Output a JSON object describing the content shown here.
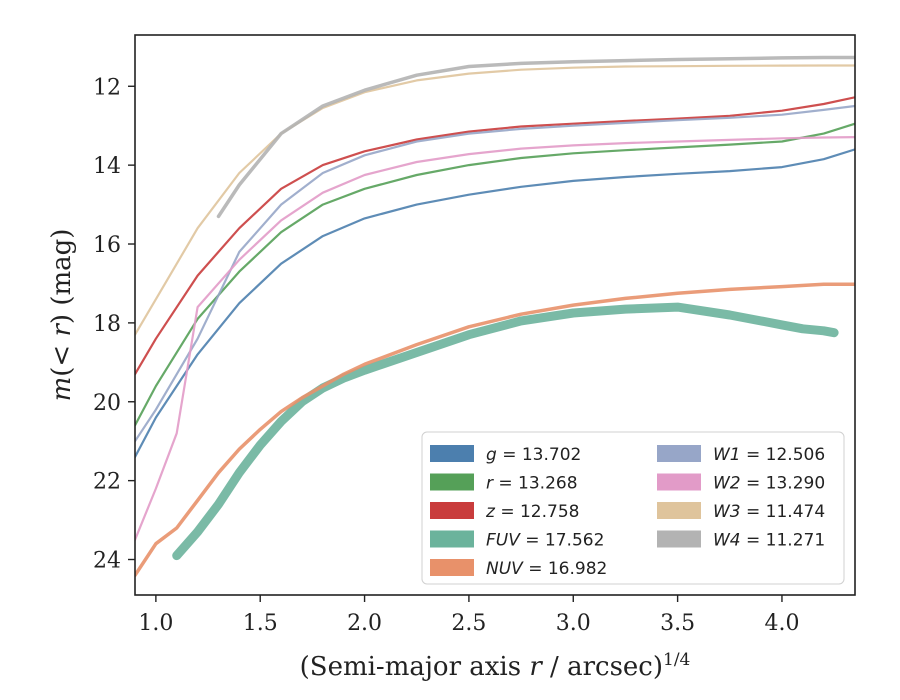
{
  "chart_data": {
    "type": "line",
    "xlabel": "(Semi-major axis r / arcsec)^1/4",
    "ylabel": "m(< r) (mag)",
    "xlim": [
      0.9,
      4.35
    ],
    "ylim": [
      24.9,
      10.7
    ],
    "y_inverted": true,
    "grid": false,
    "legend_position": "lower-right",
    "xticks": [
      "1.0",
      "1.5",
      "2.0",
      "2.5",
      "3.0",
      "3.5",
      "4.0"
    ],
    "xtick_values": [
      1.0,
      1.5,
      2.0,
      2.5,
      3.0,
      3.5,
      4.0
    ],
    "yticks": [
      "12",
      "14",
      "16",
      "18",
      "20",
      "22",
      "24"
    ],
    "ytick_values": [
      12,
      14,
      16,
      18,
      20,
      22,
      24
    ],
    "series": [
      {
        "name": "g = 13.702",
        "band": "g",
        "mag": "13.702",
        "color": "#4c7fae",
        "x": [
          0.9,
          1.0,
          1.2,
          1.4,
          1.6,
          1.8,
          2.0,
          2.25,
          2.5,
          2.75,
          3.0,
          3.25,
          3.5,
          3.75,
          4.0,
          4.2,
          4.35
        ],
        "y": [
          21.4,
          20.4,
          18.8,
          17.5,
          16.5,
          15.8,
          15.35,
          15.0,
          14.75,
          14.55,
          14.4,
          14.3,
          14.22,
          14.15,
          14.05,
          13.85,
          13.6
        ]
      },
      {
        "name": "r = 13.268",
        "band": "r",
        "mag": "13.268",
        "color": "#55a058",
        "x": [
          0.9,
          1.0,
          1.2,
          1.4,
          1.6,
          1.8,
          2.0,
          2.25,
          2.5,
          2.75,
          3.0,
          3.25,
          3.5,
          3.75,
          4.0,
          4.2,
          4.35
        ],
        "y": [
          20.6,
          19.6,
          17.9,
          16.7,
          15.7,
          15.0,
          14.6,
          14.25,
          14.0,
          13.82,
          13.7,
          13.62,
          13.55,
          13.48,
          13.4,
          13.2,
          12.95
        ]
      },
      {
        "name": "z = 12.758",
        "band": "z",
        "mag": "12.758",
        "color": "#c93c3c",
        "x": [
          0.9,
          1.0,
          1.2,
          1.4,
          1.6,
          1.8,
          2.0,
          2.25,
          2.5,
          2.75,
          3.0,
          3.25,
          3.5,
          3.75,
          4.0,
          4.2,
          4.35
        ],
        "y": [
          19.3,
          18.4,
          16.8,
          15.6,
          14.6,
          14.0,
          13.65,
          13.35,
          13.15,
          13.02,
          12.95,
          12.88,
          12.82,
          12.75,
          12.62,
          12.45,
          12.28
        ]
      },
      {
        "name": "FUV = 17.562",
        "band": "FUV",
        "mag": "17.562",
        "color": "#6bb39c",
        "x": [
          1.1,
          1.2,
          1.3,
          1.4,
          1.5,
          1.6,
          1.7,
          1.8,
          1.9,
          2.0,
          2.25,
          2.5,
          2.75,
          3.0,
          3.25,
          3.5,
          3.75,
          4.0,
          4.1,
          4.2,
          4.25
        ],
        "y": [
          23.9,
          23.3,
          22.6,
          21.8,
          21.1,
          20.5,
          20.0,
          19.65,
          19.4,
          19.2,
          18.75,
          18.3,
          17.95,
          17.75,
          17.65,
          17.6,
          17.8,
          18.05,
          18.15,
          18.2,
          18.25
        ]
      },
      {
        "name": "NUV = 16.982",
        "band": "NUV",
        "mag": "16.982",
        "color": "#e8916a",
        "x": [
          0.9,
          1.0,
          1.1,
          1.2,
          1.3,
          1.4,
          1.5,
          1.6,
          1.7,
          1.8,
          1.9,
          2.0,
          2.25,
          2.5,
          2.75,
          3.0,
          3.25,
          3.5,
          3.75,
          4.0,
          4.2,
          4.35
        ],
        "y": [
          24.4,
          23.6,
          23.2,
          22.5,
          21.8,
          21.2,
          20.7,
          20.25,
          19.9,
          19.6,
          19.3,
          19.05,
          18.55,
          18.1,
          17.78,
          17.55,
          17.38,
          17.25,
          17.15,
          17.08,
          17.02,
          17.02
        ]
      },
      {
        "name": "W1 = 12.506",
        "band": "W1",
        "mag": "12.506",
        "color": "#97a6c8",
        "x": [
          0.9,
          1.0,
          1.2,
          1.4,
          1.6,
          1.8,
          2.0,
          2.25,
          2.5,
          2.75,
          3.0,
          3.25,
          3.5,
          3.75,
          4.0,
          4.2,
          4.35
        ],
        "y": [
          21.0,
          20.2,
          18.4,
          16.2,
          15.0,
          14.2,
          13.75,
          13.4,
          13.2,
          13.08,
          13.0,
          12.93,
          12.86,
          12.8,
          12.72,
          12.6,
          12.5
        ]
      },
      {
        "name": "W2 = 13.290",
        "band": "W2",
        "mag": "13.290",
        "color": "#e29bc8",
        "x": [
          0.9,
          1.0,
          1.1,
          1.2,
          1.4,
          1.6,
          1.8,
          2.0,
          2.25,
          2.5,
          2.75,
          3.0,
          3.25,
          3.5,
          3.75,
          4.0,
          4.2,
          4.35
        ],
        "y": [
          23.5,
          22.2,
          20.8,
          17.6,
          16.4,
          15.4,
          14.7,
          14.25,
          13.92,
          13.72,
          13.58,
          13.5,
          13.44,
          13.4,
          13.36,
          13.32,
          13.3,
          13.29
        ]
      },
      {
        "name": "W3 = 11.474",
        "band": "W3",
        "mag": "11.474",
        "color": "#dfc49c",
        "x": [
          0.9,
          1.0,
          1.2,
          1.4,
          1.6,
          1.8,
          2.0,
          2.25,
          2.5,
          2.75,
          3.0,
          3.25,
          3.5,
          3.75,
          4.0,
          4.2,
          4.35
        ],
        "y": [
          18.3,
          17.4,
          15.6,
          14.2,
          13.2,
          12.55,
          12.15,
          11.85,
          11.68,
          11.58,
          11.53,
          11.5,
          11.49,
          11.48,
          11.475,
          11.474,
          11.474
        ]
      },
      {
        "name": "W4 = 11.271",
        "band": "W4",
        "mag": "11.271",
        "color": "#b3b3b3",
        "x": [
          1.3,
          1.4,
          1.6,
          1.8,
          2.0,
          2.25,
          2.5,
          2.75,
          3.0,
          3.25,
          3.5,
          3.75,
          4.0,
          4.2,
          4.35
        ],
        "y": [
          15.3,
          14.5,
          13.2,
          12.5,
          12.1,
          11.72,
          11.5,
          11.42,
          11.38,
          11.35,
          11.32,
          11.3,
          11.28,
          11.27,
          11.27
        ]
      }
    ]
  }
}
